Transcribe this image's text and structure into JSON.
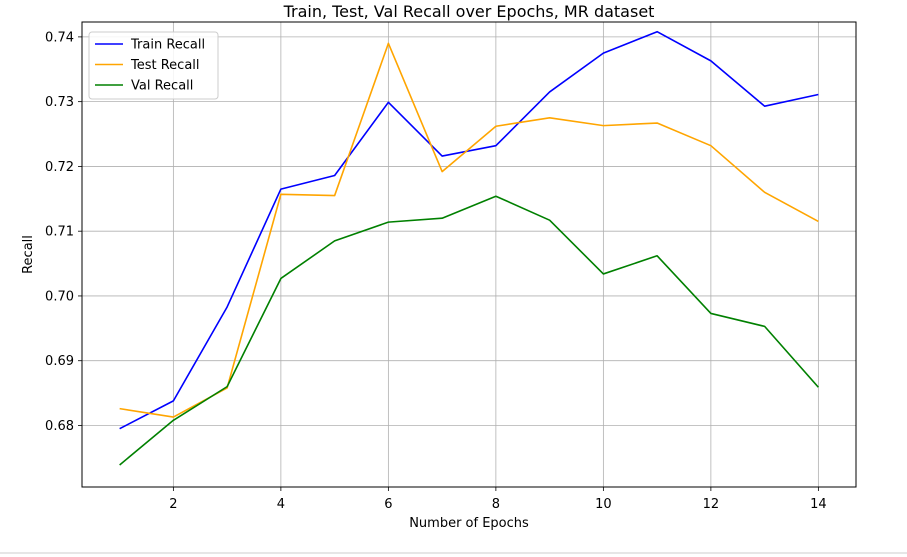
{
  "chart_data": {
    "type": "line",
    "title": "Train, Test, Val Recall over Epochs, MR dataset",
    "xlabel": "Number of Epochs",
    "ylabel": "Recall",
    "x": [
      1,
      2,
      3,
      4,
      5,
      6,
      7,
      8,
      9,
      10,
      11,
      12,
      13,
      14
    ],
    "xlim": [
      0.3,
      14.7
    ],
    "ylim": [
      0.6705,
      0.7423
    ],
    "xticks": [
      2,
      4,
      6,
      8,
      10,
      12,
      14
    ],
    "yticks": [
      0.68,
      0.69,
      0.7,
      0.71,
      0.72,
      0.73,
      0.74
    ],
    "xtick_labels": [
      "2",
      "4",
      "6",
      "8",
      "10",
      "12",
      "14"
    ],
    "ytick_labels": [
      "0.68",
      "0.69",
      "0.70",
      "0.71",
      "0.72",
      "0.73",
      "0.74"
    ],
    "grid": true,
    "legend_position": "top-left",
    "series": [
      {
        "name": "Train Recall",
        "color": "#0000ff",
        "values": [
          0.6795,
          0.6838,
          0.6983,
          0.7165,
          0.7186,
          0.7299,
          0.7216,
          0.7232,
          0.7315,
          0.7375,
          0.7408,
          0.7363,
          0.7293,
          0.7311
        ]
      },
      {
        "name": "Test Recall",
        "color": "#ffa500",
        "values": [
          0.6826,
          0.6813,
          0.6858,
          0.7157,
          0.7155,
          0.739,
          0.7192,
          0.7262,
          0.7275,
          0.7263,
          0.7267,
          0.7232,
          0.716,
          0.7115
        ]
      },
      {
        "name": "Val Recall",
        "color": "#008000",
        "values": [
          0.6739,
          0.6808,
          0.686,
          0.7027,
          0.7085,
          0.7114,
          0.712,
          0.7154,
          0.7117,
          0.7034,
          0.7062,
          0.6973,
          0.6953,
          0.6859
        ]
      }
    ]
  }
}
